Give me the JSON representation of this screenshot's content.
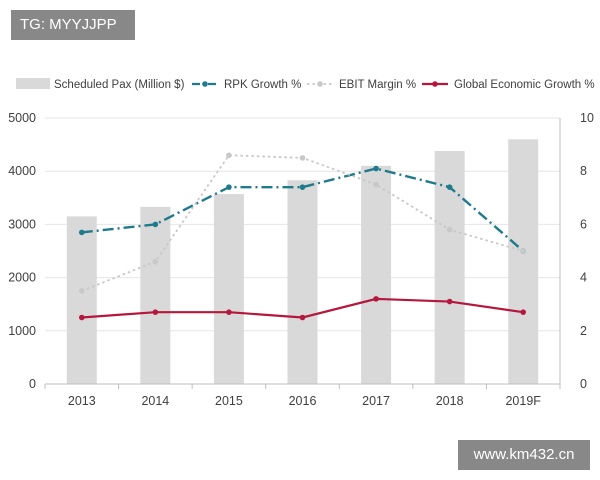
{
  "overlay": {
    "tag_text": "TG: MYYJJPP",
    "watermark_text": "www.km432.cn"
  },
  "chart_data": {
    "type": "bar",
    "categories": [
      "2013",
      "2014",
      "2015",
      "2016",
      "2017",
      "2018",
      "2019F"
    ],
    "y_left": {
      "range": [
        0,
        5000
      ],
      "ticks": [
        "0",
        "1000",
        "2000",
        "3000",
        "4000",
        "5000"
      ]
    },
    "y_right": {
      "range": [
        0,
        10
      ],
      "ticks": [
        "0",
        "2",
        "4",
        "6",
        "8",
        "10"
      ]
    },
    "grid": true,
    "legend_position": "top",
    "series": [
      {
        "name": "Scheduled Pax (Million $)",
        "type": "bar",
        "axis": "left",
        "color": "#d9d9d9",
        "values": [
          3150,
          3330,
          3570,
          3830,
          4100,
          4380,
          4600
        ]
      },
      {
        "name": "RPK Growth %",
        "type": "line",
        "style": "dash-dot",
        "axis": "right",
        "color": "#1f7a8c",
        "values": [
          5.7,
          6.0,
          7.4,
          7.4,
          8.1,
          7.4,
          5.0
        ]
      },
      {
        "name": "EBIT Margin %",
        "type": "line",
        "style": "dotted",
        "axis": "right",
        "color": "#c8c8c8",
        "values": [
          3.5,
          4.6,
          8.6,
          8.5,
          7.5,
          5.8,
          5.0
        ]
      },
      {
        "name": "Global Economic Growth %",
        "type": "line",
        "style": "solid",
        "axis": "right",
        "color": "#b5173d",
        "values": [
          2.5,
          2.7,
          2.7,
          2.5,
          3.2,
          3.1,
          2.7
        ]
      }
    ]
  }
}
